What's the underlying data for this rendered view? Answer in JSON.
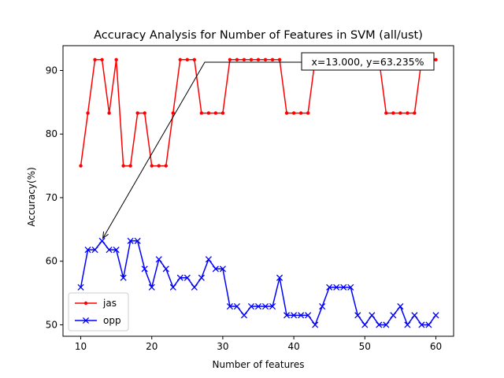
{
  "chart_data": {
    "type": "line",
    "title": "Accuracy Analysis for Number of Features in SVM (all/ust)",
    "xlabel": "Number of features",
    "ylabel": "Accuracy(%)",
    "xlim": [
      7.5,
      62.5
    ],
    "ylim": [
      48.2,
      93.9
    ],
    "xticks": [
      10,
      20,
      30,
      40,
      50,
      60
    ],
    "yticks": [
      50,
      60,
      70,
      80,
      90
    ],
    "grid": false,
    "legend_position": "lower-left",
    "x": [
      10,
      11,
      12,
      13,
      14,
      15,
      16,
      17,
      18,
      19,
      20,
      21,
      22,
      23,
      24,
      25,
      26,
      27,
      28,
      29,
      30,
      31,
      32,
      33,
      34,
      35,
      36,
      37,
      38,
      39,
      40,
      41,
      42,
      43,
      44,
      45,
      46,
      47,
      48,
      49,
      50,
      51,
      52,
      53,
      54,
      55,
      56,
      57,
      58,
      59,
      60
    ],
    "series": [
      {
        "name": "jas",
        "color": "#ff0000",
        "marker": "dot",
        "values": [
          75.0,
          83.3,
          91.7,
          91.7,
          83.3,
          91.7,
          75.0,
          75.0,
          83.3,
          83.3,
          75.0,
          75.0,
          75.0,
          83.3,
          91.7,
          91.7,
          91.7,
          83.3,
          83.3,
          83.3,
          83.3,
          91.7,
          91.7,
          91.7,
          91.7,
          91.7,
          91.7,
          91.7,
          91.7,
          83.3,
          83.3,
          83.3,
          83.3,
          91.7,
          91.7,
          91.7,
          91.7,
          91.7,
          91.7,
          91.7,
          91.7,
          91.7,
          91.7,
          83.3,
          83.3,
          83.3,
          83.3,
          83.3,
          91.7,
          91.7,
          91.7
        ]
      },
      {
        "name": "opp",
        "color": "#0000ff",
        "marker": "x",
        "values": [
          55.9,
          61.8,
          61.8,
          63.2,
          61.8,
          61.8,
          57.4,
          63.2,
          63.2,
          58.8,
          55.9,
          60.3,
          58.8,
          55.9,
          57.4,
          57.4,
          55.9,
          57.4,
          60.3,
          58.8,
          58.8,
          52.9,
          52.9,
          51.5,
          52.9,
          52.9,
          52.9,
          52.9,
          57.4,
          51.5,
          51.5,
          51.5,
          51.5,
          50.0,
          52.9,
          55.9,
          55.9,
          55.9,
          55.9,
          51.5,
          50.0,
          51.5,
          50.0,
          50.0,
          51.5,
          52.9,
          50.0,
          51.5,
          50.0,
          50.0,
          51.5
        ]
      }
    ],
    "annotation": {
      "text": "x=13.000, y=63.235%",
      "target": [
        13,
        63.235
      ]
    }
  }
}
